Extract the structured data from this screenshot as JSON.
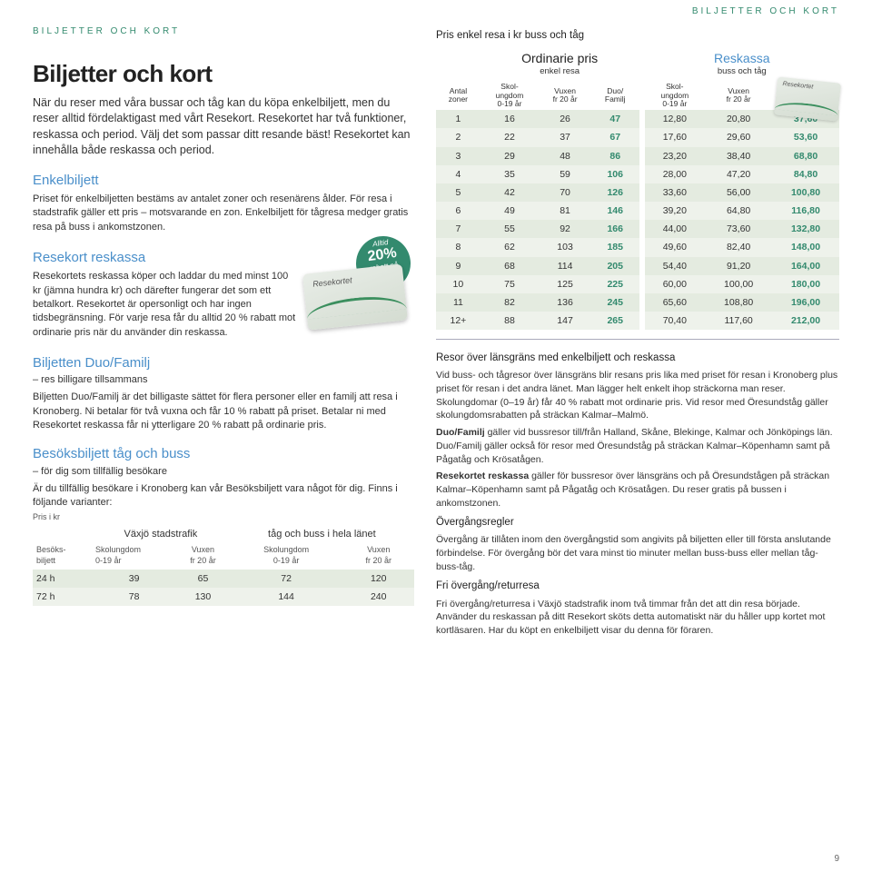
{
  "headers": {
    "band": "BILJETTER OCH KORT"
  },
  "left": {
    "title": "Biljetter och kort",
    "intro": "När du reser med våra bussar och tåg kan du köpa enkelbiljett, men du reser alltid fördelaktigast med vårt Resekort. Resekortet har två funktioner, reskassa och period. Välj det som passar ditt resande bäst! Resekortet kan innehålla både reskassa och period.",
    "enkel_h": "Enkelbiljett",
    "enkel_p": "Priset för enkelbiljetten bestäms av antalet zoner och resenärens ålder. För resa i stadstrafik gäller ett pris – motsvarande en zon. Enkelbiljett för tågresa medger gratis resa på buss i ankomstzonen.",
    "reskassa_h": "Resekort reskassa",
    "reskassa_p": "Resekortets reskassa köper och laddar du med minst 100 kr (jämna hundra kr) och därefter fungerar det som ett betalkort. Resekortet är opersonligt och har ingen tidsbegränsning. För varje resa får du alltid 20 % rabatt mot ordinarie pris när du använder din reskassa.",
    "burst": {
      "l1": "Alltid",
      "big": "20%",
      "l2": "rabatt på",
      "l3": "ordinarie",
      "l4": "pris."
    },
    "card_label": "Resekortet",
    "duo_h": "Biljetten Duo/Familj",
    "duo_sub": "– res billigare tillsammans",
    "duo_p": "Biljetten Duo/Familj är det billigaste sättet för flera personer eller en familj att resa i Kronoberg. Ni betalar för två vuxna och får 10 % rabatt på priset. Betalar ni med Resekortet reskassa får ni ytterligare 20 % rabatt på ordinarie pris.",
    "besok_h": "Besöksbiljett tåg och buss",
    "besok_sub": "– för dig som tillfällig besökare",
    "besok_p": "Är du tillfällig besökare i Kronoberg kan vår Besöksbiljett vara något för dig. Finns i följande varianter:",
    "visitor": {
      "note": "Pris i kr",
      "rowhdr": "Besöks-\nbiljett",
      "grp1": "Växjö stadstrafik",
      "grp2": "tåg och buss i hela länet",
      "c1": "Skolungdom\n0-19 år",
      "c2": "Vuxen\nfr 20 år",
      "c3": "Skolungdom\n0-19 år",
      "c4": "Vuxen\nfr 20 år",
      "rows": [
        {
          "label": "24 h",
          "v": [
            "39",
            "65",
            "72",
            "120"
          ]
        },
        {
          "label": "72 h",
          "v": [
            "78",
            "130",
            "144",
            "240"
          ]
        }
      ]
    }
  },
  "right": {
    "title": "Pris enkel resa i kr buss och tåg",
    "ord": "Ordinarie pris",
    "ord_sub": "enkel resa",
    "res": "Reskassa",
    "res_sub": "buss och tåg",
    "cols": {
      "zoner": "Antal\nzoner",
      "skol": "Skol-\nungdom\n0-19 år",
      "vux": "Vuxen\nfr 20 år",
      "duo": "Duo/\nFamilj"
    },
    "rows": [
      {
        "z": "1",
        "o": [
          "16",
          "26",
          "47"
        ],
        "r": [
          "12,80",
          "20,80",
          "37,60"
        ]
      },
      {
        "z": "2",
        "o": [
          "22",
          "37",
          "67"
        ],
        "r": [
          "17,60",
          "29,60",
          "53,60"
        ]
      },
      {
        "z": "3",
        "o": [
          "29",
          "48",
          "86"
        ],
        "r": [
          "23,20",
          "38,40",
          "68,80"
        ]
      },
      {
        "z": "4",
        "o": [
          "35",
          "59",
          "106"
        ],
        "r": [
          "28,00",
          "47,20",
          "84,80"
        ]
      },
      {
        "z": "5",
        "o": [
          "42",
          "70",
          "126"
        ],
        "r": [
          "33,60",
          "56,00",
          "100,80"
        ]
      },
      {
        "z": "6",
        "o": [
          "49",
          "81",
          "146"
        ],
        "r": [
          "39,20",
          "64,80",
          "116,80"
        ]
      },
      {
        "z": "7",
        "o": [
          "55",
          "92",
          "166"
        ],
        "r": [
          "44,00",
          "73,60",
          "132,80"
        ]
      },
      {
        "z": "8",
        "o": [
          "62",
          "103",
          "185"
        ],
        "r": [
          "49,60",
          "82,40",
          "148,00"
        ]
      },
      {
        "z": "9",
        "o": [
          "68",
          "114",
          "205"
        ],
        "r": [
          "54,40",
          "91,20",
          "164,00"
        ]
      },
      {
        "z": "10",
        "o": [
          "75",
          "125",
          "225"
        ],
        "r": [
          "60,00",
          "100,00",
          "180,00"
        ]
      },
      {
        "z": "11",
        "o": [
          "82",
          "136",
          "245"
        ],
        "r": [
          "65,60",
          "108,80",
          "196,00"
        ]
      },
      {
        "z": "12+",
        "o": [
          "88",
          "147",
          "265"
        ],
        "r": [
          "70,40",
          "117,60",
          "212,00"
        ]
      }
    ],
    "body": {
      "h1": "Resor över länsgräns med enkelbiljett och reskassa",
      "p1": "Vid buss- och tågresor över länsgräns blir resans pris lika med priset för resan i Kronoberg plus priset för resan i det andra länet. Man lägger helt enkelt ihop sträckorna man reser. Skolungdomar (0–19 år) får 40 % rabatt mot ordinarie pris. Vid resor med Öresundståg gäller skolungdomsrabatten på sträckan Kalmar–Malmö.",
      "p2": "Duo/Familj gäller vid bussresor till/från Halland, Skåne, Blekinge, Kalmar och Jönköpings län. Duo/Familj gäller också för resor med Öresundståg på sträckan Kalmar–Köpenhamn samt på Pågatåg och Krösatågen.",
      "p3": "Resekortet reskassa gäller för bussresor över länsgräns och på Öresundstågen på sträckan Kalmar–Köpenhamn samt på Pågatåg och Krösatågen. Du reser gratis på bussen i ankomstzonen.",
      "h2": "Övergångsregler",
      "p4": "Övergång är tillåten inom den övergångstid som angivits på biljetten eller till första anslutande förbindelse. För övergång bör det vara minst tio minuter mellan buss-buss eller mellan tåg-buss-tåg.",
      "h3": "Fri övergång/returresa",
      "p5": "Fri övergång/returresa i Växjö stadstrafik inom två timmar från det att din resa började. Använder du reskassan på ditt Resekort sköts detta automatiskt när du håller upp kortet mot kortläsaren. Har du köpt en enkelbiljett visar du denna för föraren."
    }
  },
  "page_num": "9",
  "colors": {
    "green": "#338a6e",
    "blue": "#4a8fca",
    "row_alt1": "#e4ebe0",
    "row_alt2": "#eef2eb"
  }
}
